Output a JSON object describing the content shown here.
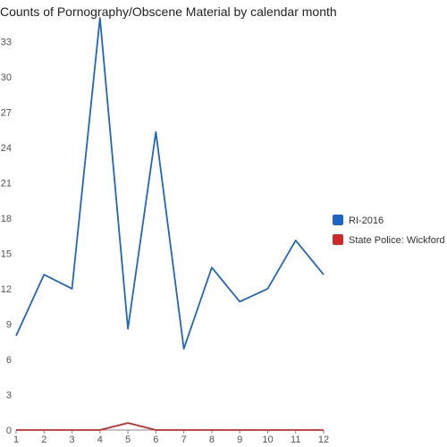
{
  "chart_data": {
    "type": "line",
    "title": "Counts of Pornography/Obscene Material by calendar month",
    "xlabel": "",
    "ylabel": "",
    "x": [
      1,
      2,
      3,
      4,
      5,
      6,
      7,
      8,
      9,
      10,
      11,
      12
    ],
    "xlim": [
      1,
      12
    ],
    "ylim": [
      0,
      35
    ],
    "y_ticks": [
      0,
      3,
      6,
      9,
      12,
      15,
      18,
      21,
      24,
      27,
      30,
      33
    ],
    "grid": false,
    "legend_position": "right",
    "series": [
      {
        "name": "RI-2016",
        "color": "#1f66c2",
        "values": [
          8,
          13.2,
          12,
          35,
          8.6,
          25.3,
          6.9,
          13.8,
          10.9,
          12,
          16.1,
          13.2
        ]
      },
      {
        "name": "State Police: Wickford",
        "color": "#cc2a2a",
        "values": [
          0,
          0,
          0,
          0,
          0.6,
          0,
          0,
          0,
          0,
          0,
          0,
          0
        ]
      }
    ]
  }
}
